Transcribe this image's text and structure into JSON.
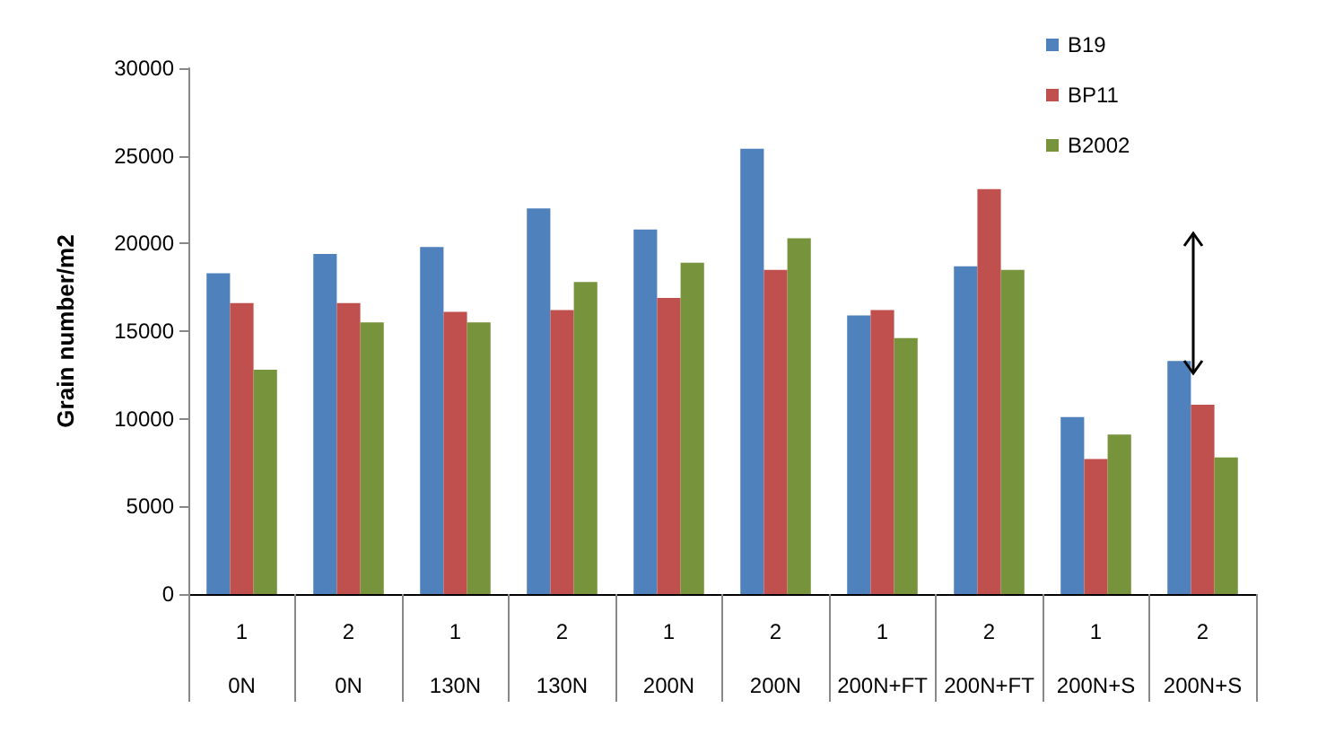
{
  "chart_data": {
    "type": "bar",
    "ylabel": "Grain number/m2",
    "categories": [
      "1\n0N",
      "2\n0N",
      "1\n130N",
      "2\n130N",
      "1\n200N",
      "2\n200N",
      "1\n200N+FT",
      "2\n200N+FT",
      "1\n200N+S",
      "2\n200N+S"
    ],
    "series": [
      {
        "name": "B19",
        "color": "#4f81bd",
        "values": [
          18300,
          19400,
          19800,
          22000,
          20800,
          25400,
          15900,
          18700,
          10100,
          13300
        ]
      },
      {
        "name": "BP11",
        "color": "#c0504d",
        "values": [
          16600,
          16600,
          16100,
          16200,
          16900,
          18500,
          16200,
          23100,
          7700,
          10800
        ]
      },
      {
        "name": "B2002",
        "color": "#77933c",
        "values": [
          12800,
          15500,
          15500,
          17800,
          18900,
          20300,
          14600,
          18500,
          9100,
          7800
        ]
      }
    ],
    "ylim": [
      0,
      30000
    ],
    "yticks": [
      0,
      5000,
      10000,
      15000,
      20000,
      25000,
      30000
    ],
    "grid": false,
    "legend": "top right"
  }
}
